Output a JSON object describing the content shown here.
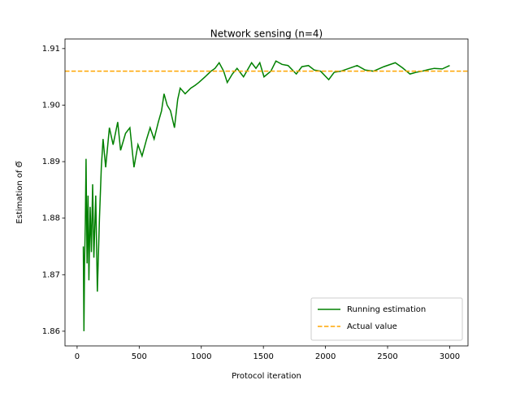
{
  "chart_data": {
    "type": "line",
    "title": "Network sensing (n=4)",
    "x_label": "Protocol iteration",
    "y_label": "Estimation of Θ̅",
    "x": [
      50,
      55,
      60,
      66,
      72,
      80,
      88,
      95,
      105,
      115,
      125,
      135,
      150,
      163,
      180,
      195,
      209,
      230,
      260,
      290,
      327,
      350,
      390,
      425,
      458,
      490,
      523,
      560,
      588,
      620,
      654,
      680,
      700,
      725,
      752,
      784,
      810,
      830,
      870,
      915,
      950,
      980,
      1030,
      1078,
      1110,
      1144,
      1180,
      1209,
      1250,
      1288,
      1340,
      1405,
      1440,
      1471,
      1505,
      1560,
      1601,
      1650,
      1699,
      1765,
      1810,
      1863,
      1910,
      1961,
      2026,
      2070,
      2124,
      2190,
      2255,
      2320,
      2386,
      2470,
      2562,
      2620,
      2680,
      2730,
      2778,
      2830,
      2876,
      2940,
      3000
    ],
    "series": [
      {
        "name": "Running estimation",
        "color": "#008000",
        "values": [
          1.875,
          1.86,
          1.872,
          1.879,
          1.8905,
          1.872,
          1.884,
          1.869,
          1.882,
          1.874,
          1.886,
          1.873,
          1.884,
          1.867,
          1.88,
          1.889,
          1.894,
          1.889,
          1.896,
          1.893,
          1.897,
          1.892,
          1.895,
          1.896,
          1.889,
          1.893,
          1.891,
          1.894,
          1.896,
          1.894,
          1.897,
          1.899,
          1.902,
          1.9,
          1.899,
          1.896,
          1.901,
          1.903,
          1.902,
          1.903,
          1.9035,
          1.904,
          1.905,
          1.906,
          1.9065,
          1.9075,
          1.906,
          1.904,
          1.9055,
          1.9065,
          1.905,
          1.9075,
          1.9065,
          1.9075,
          1.905,
          1.906,
          1.9078,
          1.9072,
          1.907,
          1.9055,
          1.9068,
          1.907,
          1.9062,
          1.906,
          1.9045,
          1.9058,
          1.906,
          1.9065,
          1.907,
          1.9062,
          1.906,
          1.9068,
          1.9075,
          1.9066,
          1.9055,
          1.9058,
          1.906,
          1.9063,
          1.9065,
          1.9064,
          1.907
        ]
      }
    ],
    "reference_lines": [
      {
        "name": "Actual value",
        "color": "#ffa500",
        "value": 1.906,
        "dashed": true
      }
    ],
    "xlim": [
      -97.5,
      3147.5
    ],
    "ylim": [
      1.8574,
      1.9117
    ],
    "xticks": [
      0,
      500,
      1000,
      1500,
      2000,
      2500,
      3000
    ],
    "yticks": [
      1.86,
      1.87,
      1.88,
      1.89,
      {
        "value": 1.9,
        "label": "1.90"
      },
      1.91
    ],
    "legend": "lower right"
  }
}
